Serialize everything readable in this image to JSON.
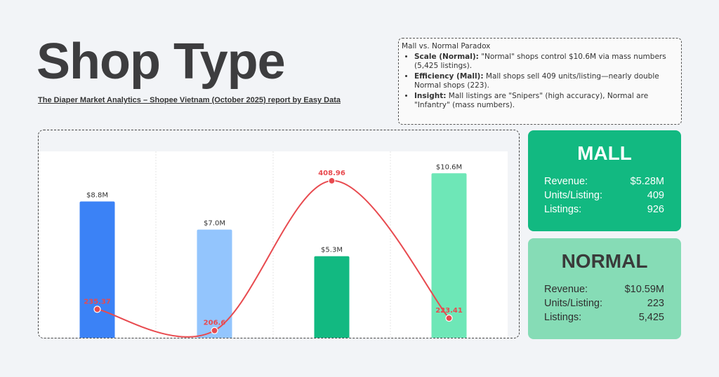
{
  "header": {
    "title": "Shop Type",
    "subtitle": "The Diaper Market Analytics – Shopee Vietnam (October 2025) report by Easy Data"
  },
  "notes": {
    "heading": "Mall vs. Normal Paradox",
    "items": [
      {
        "label": "Scale (Normal):",
        "text": " \"Normal\" shops control $10.6M via mass numbers (5,425 listings)."
      },
      {
        "label": "Efficiency (Mall):",
        "text": " Mall shops sell 409 units/listing—nearly double Normal shops (223)."
      },
      {
        "label": "Insight:",
        "text": " Mall listings are \"Snipers\" (high accuracy), Normal are \"Infantry\" (mass numbers)."
      }
    ]
  },
  "cards": {
    "mall": {
      "title": "MALL",
      "rows": [
        {
          "label": "Revenue:",
          "value": "$5.28M"
        },
        {
          "label": "Units/Listing:",
          "value": "409"
        },
        {
          "label": "Listings:",
          "value": "926"
        }
      ]
    },
    "normal": {
      "title": "NORMAL",
      "rows": [
        {
          "label": "Revenue:",
          "value": "$10.59M"
        },
        {
          "label": "Units/Listing:",
          "value": "223"
        },
        {
          "label": "Listings:",
          "value": "5,425"
        }
      ]
    }
  },
  "chart_data": {
    "type": "bar",
    "categories": [
      "",
      "",
      "",
      ""
    ],
    "series": [
      {
        "type": "bar",
        "values": [
          8.8,
          7.0,
          5.3,
          10.6
        ],
        "labels": [
          "$8.8M",
          "$7.0M",
          "$5.3M",
          "$10.6M"
        ],
        "colors": [
          "#3b82f6",
          "#93c5fd",
          "#12b981",
          "#6ee7b7"
        ]
      },
      {
        "type": "line",
        "values": [
          235.37,
          206.6,
          408.96,
          223.41
        ],
        "labels": [
          "235.37",
          "206.6",
          "408.96",
          "223.41"
        ],
        "color": "#e84a4f",
        "smooth": true
      }
    ],
    "grid": "vertical"
  }
}
